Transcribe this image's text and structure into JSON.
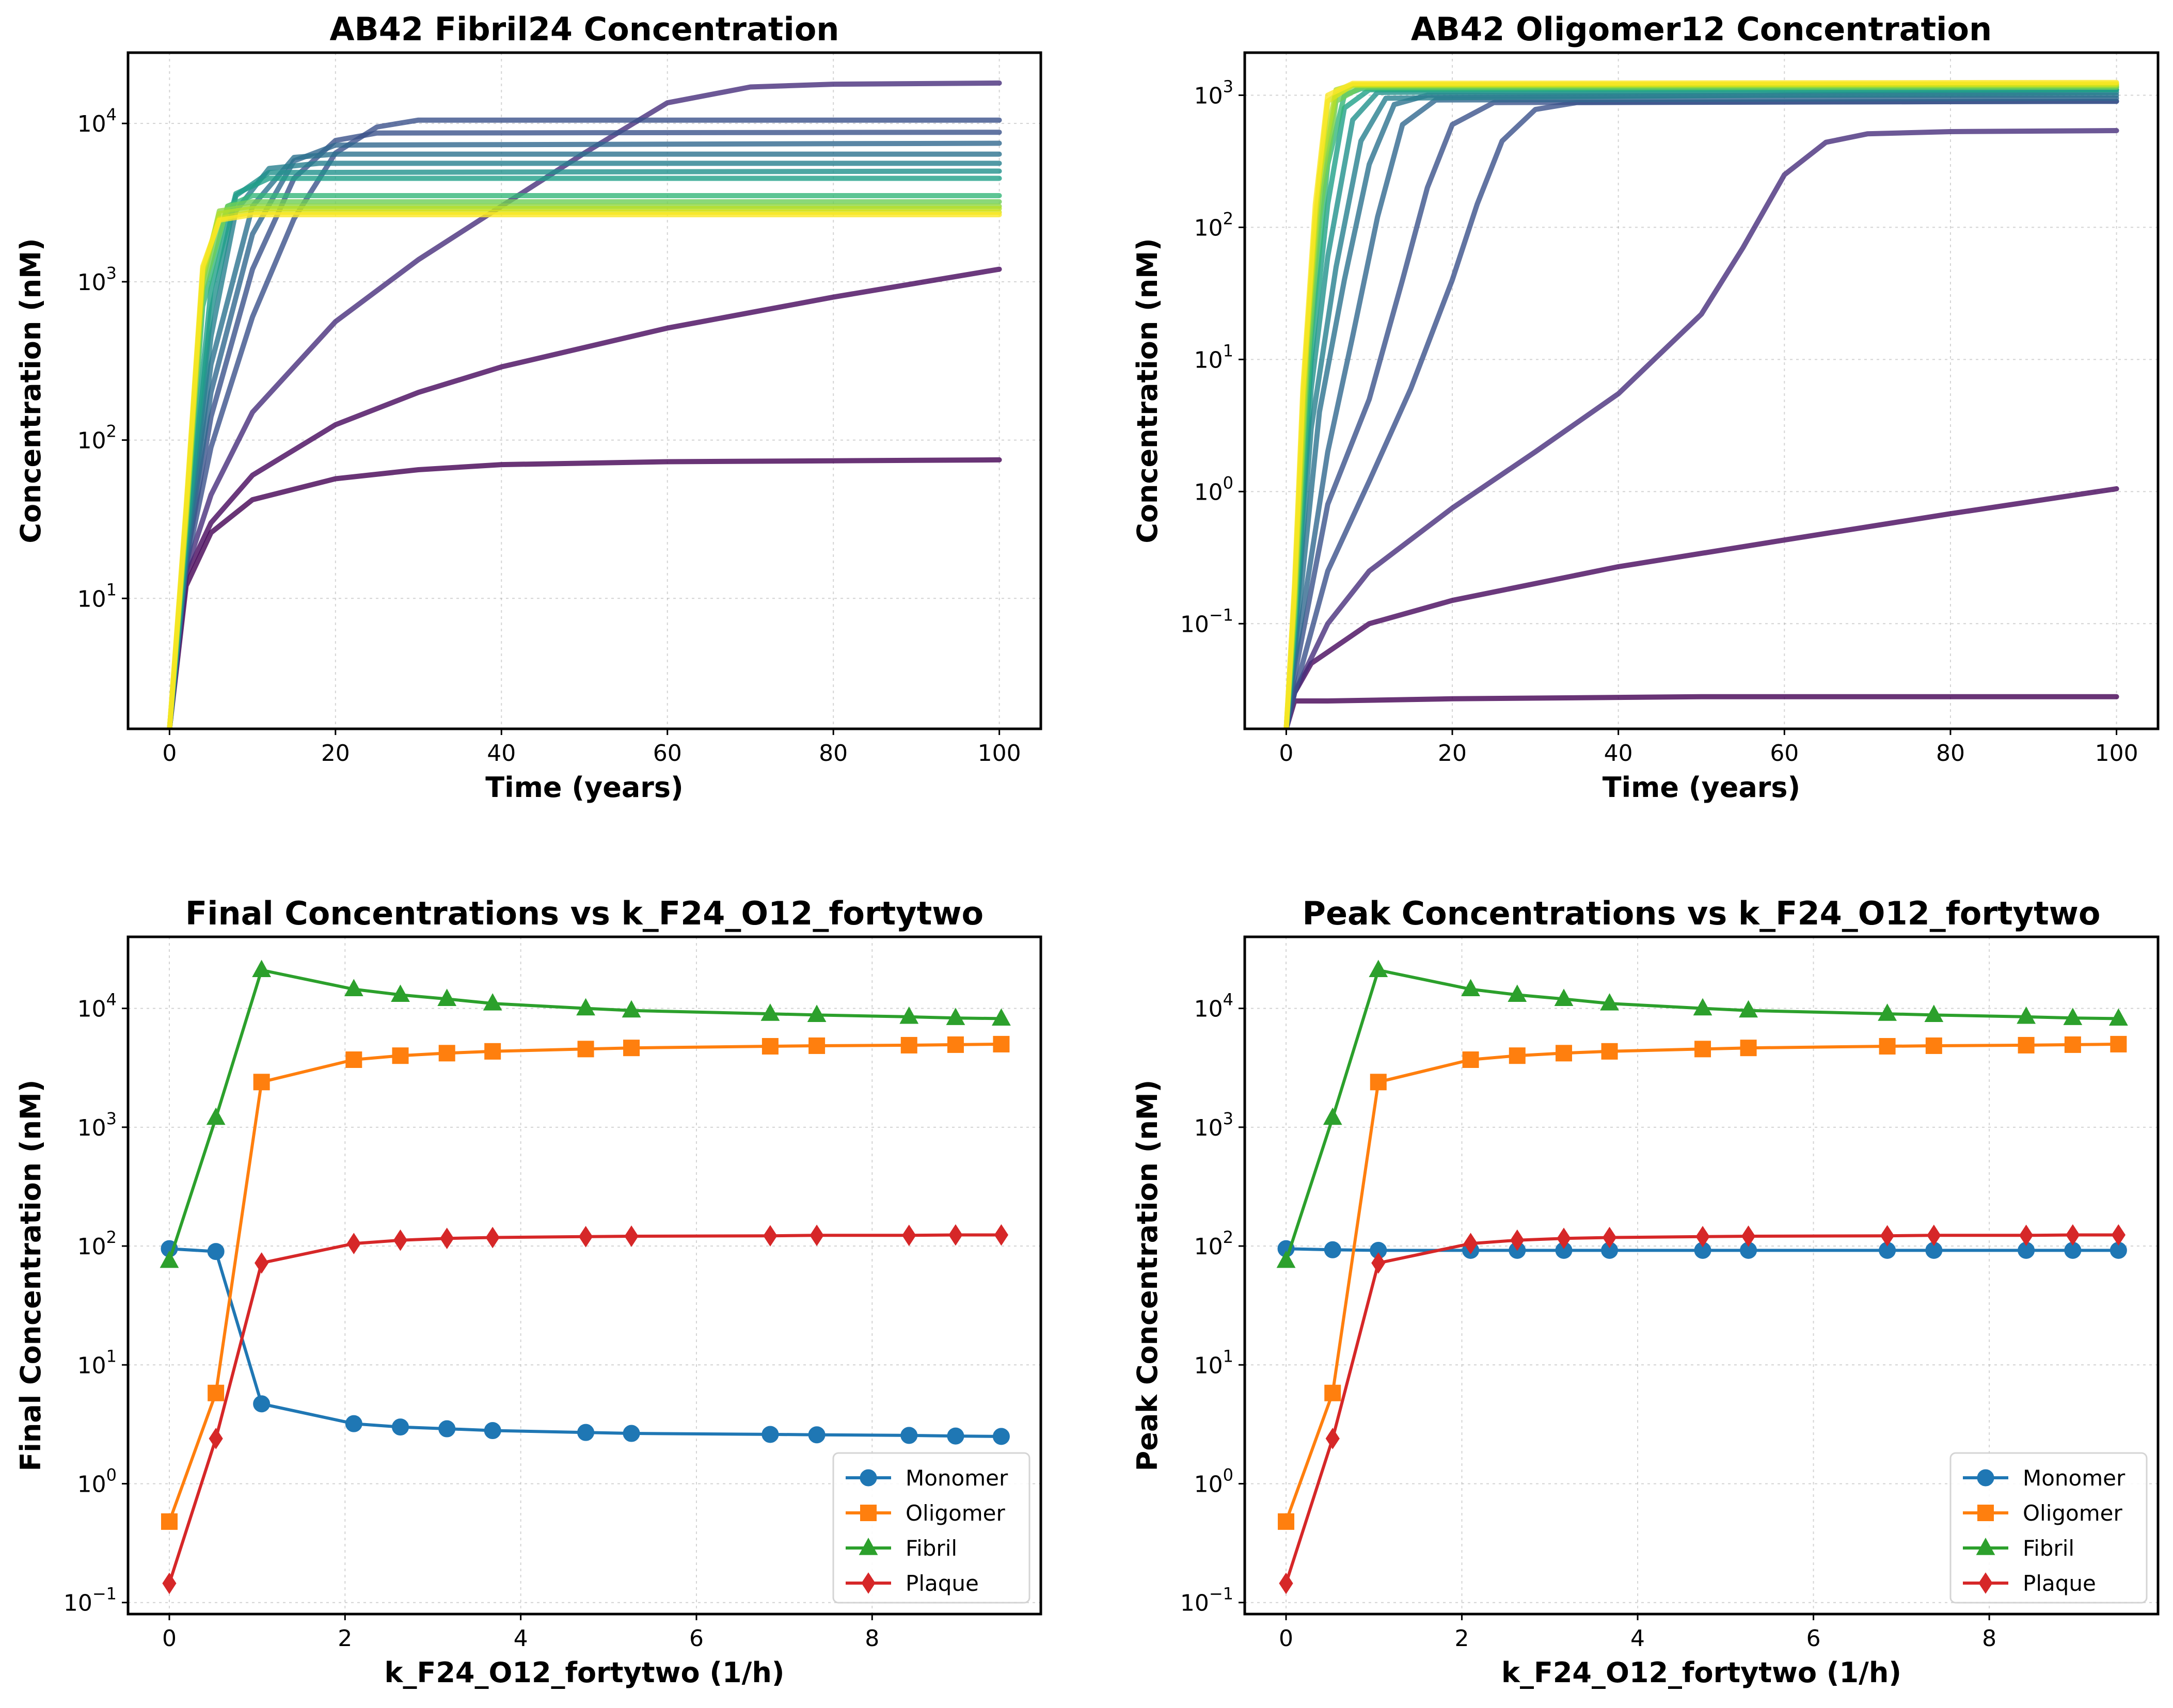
{
  "chart_data": [
    {
      "id": "fibril",
      "type": "line",
      "title": "AB42 Fibril24 Concentration",
      "xlabel": "Time (years)",
      "ylabel": "Concentration (nM)",
      "xlim": [
        -5,
        105
      ],
      "ylim": [
        1.5,
        28000
      ],
      "yscale": "log",
      "xticks": [
        0,
        20,
        40,
        60,
        80,
        100
      ],
      "yticks": [
        10,
        100,
        1000,
        10000
      ],
      "ytick_labels": [
        "10^1",
        "10^2",
        "10^3",
        "10^4"
      ],
      "grid": true,
      "legend": null,
      "colormap": "viridis",
      "series": [
        {
          "color": "#440154",
          "x": [
            0,
            2,
            5,
            10,
            20,
            30,
            40,
            60,
            80,
            100
          ],
          "y": [
            1.5,
            12,
            26,
            42,
            57,
            65,
            70,
            73,
            74,
            75
          ]
        },
        {
          "color": "#46085c",
          "x": [
            0,
            2,
            5,
            10,
            20,
            30,
            40,
            60,
            80,
            100
          ],
          "y": [
            1.5,
            14,
            30,
            60,
            125,
            200,
            290,
            510,
            800,
            1200
          ]
        },
        {
          "color": "#472e7c",
          "x": [
            0,
            2,
            5,
            10,
            20,
            30,
            40,
            50,
            60,
            70,
            80,
            100
          ],
          "y": [
            1.5,
            15,
            45,
            150,
            560,
            1380,
            3000,
            6500,
            13500,
            17000,
            17700,
            18000
          ]
        },
        {
          "color": "#3b518b",
          "x": [
            0,
            2,
            5,
            10,
            15,
            20,
            25,
            30,
            100
          ],
          "y": [
            1.5,
            16,
            90,
            600,
            2500,
            6500,
            9500,
            10500,
            10500
          ]
        },
        {
          "color": "#3b528b",
          "x": [
            0,
            2,
            5,
            10,
            15,
            20,
            25,
            100
          ],
          "y": [
            1.5,
            17,
            140,
            1200,
            4500,
            7800,
            8700,
            8800
          ]
        },
        {
          "color": "#31688e",
          "x": [
            0,
            2,
            5,
            10,
            15,
            20,
            100
          ],
          "y": [
            1.5,
            18,
            200,
            2000,
            5800,
            7300,
            7500
          ]
        },
        {
          "color": "#2c728e",
          "x": [
            0,
            2,
            5,
            10,
            15,
            20,
            100
          ],
          "y": [
            1.5,
            19,
            300,
            3000,
            6100,
            6400,
            6400
          ]
        },
        {
          "color": "#277f8e",
          "x": [
            0,
            2,
            5,
            8,
            12,
            18,
            100
          ],
          "y": [
            1.5,
            20,
            450,
            2800,
            5200,
            5600,
            5600
          ]
        },
        {
          "color": "#21918c",
          "x": [
            0,
            2,
            5,
            8,
            12,
            100
          ],
          "y": [
            1.5,
            22,
            650,
            3500,
            4900,
            5000
          ]
        },
        {
          "color": "#1fa088",
          "x": [
            0,
            2,
            5,
            8,
            12,
            100
          ],
          "y": [
            1.5,
            24,
            900,
            3600,
            4500,
            4500
          ]
        },
        {
          "color": "#35b779",
          "x": [
            0,
            2,
            4,
            7,
            10,
            100
          ],
          "y": [
            1.5,
            28,
            700,
            3000,
            3500,
            3500
          ]
        },
        {
          "color": "#6ece58",
          "x": [
            0,
            2,
            4,
            7,
            10,
            100
          ],
          "y": [
            1.5,
            30,
            900,
            3000,
            3200,
            3200
          ]
        },
        {
          "color": "#90d743",
          "x": [
            0,
            2,
            4,
            6,
            10,
            100
          ],
          "y": [
            1.5,
            32,
            1000,
            2800,
            3000,
            3000
          ]
        },
        {
          "color": "#b5de2b",
          "x": [
            0,
            2,
            4,
            6,
            10,
            100
          ],
          "y": [
            1.5,
            34,
            1100,
            2700,
            2900,
            2900
          ]
        },
        {
          "color": "#d8e219",
          "x": [
            0,
            2,
            4,
            6,
            10,
            100
          ],
          "y": [
            1.5,
            36,
            1200,
            2500,
            2750,
            2750
          ]
        },
        {
          "color": "#fde725",
          "x": [
            0,
            2,
            4,
            6,
            10,
            100
          ],
          "y": [
            1.5,
            38,
            1250,
            2450,
            2650,
            2650
          ]
        }
      ]
    },
    {
      "id": "oligomer",
      "type": "line",
      "title": "AB42 Oligomer12 Concentration",
      "xlabel": "Time (years)",
      "ylabel": "Concentration (nM)",
      "xlim": [
        -5,
        105
      ],
      "ylim": [
        0.016,
        2100
      ],
      "yscale": "log",
      "xticks": [
        0,
        20,
        40,
        60,
        80,
        100
      ],
      "yticks": [
        0.1,
        1,
        10,
        100,
        1000
      ],
      "ytick_labels": [
        "10^-1",
        "10^0",
        "10^1",
        "10^2",
        "10^3"
      ],
      "grid": true,
      "legend": null,
      "colormap": "viridis",
      "series": [
        {
          "color": "#440154",
          "x": [
            0,
            1,
            5,
            20,
            50,
            100
          ],
          "y": [
            0.016,
            0.026,
            0.026,
            0.027,
            0.028,
            0.028
          ]
        },
        {
          "color": "#46085c",
          "x": [
            0,
            1,
            3,
            10,
            20,
            40,
            60,
            80,
            100
          ],
          "y": [
            0.016,
            0.03,
            0.05,
            0.1,
            0.15,
            0.27,
            0.43,
            0.68,
            1.05
          ]
        },
        {
          "color": "#472e7c",
          "x": [
            0,
            1,
            5,
            10,
            20,
            30,
            40,
            50,
            55,
            60,
            65,
            70,
            80,
            100
          ],
          "y": [
            0.016,
            0.03,
            0.1,
            0.25,
            0.75,
            2,
            5.5,
            22,
            70,
            250,
            440,
            510,
            530,
            540
          ]
        },
        {
          "color": "#3b518b",
          "x": [
            0,
            1,
            5,
            10,
            15,
            20,
            23,
            26,
            30,
            35,
            100
          ],
          "y": [
            0.016,
            0.03,
            0.25,
            1.2,
            6,
            40,
            150,
            450,
            780,
            880,
            900
          ]
        },
        {
          "color": "#3b528b",
          "x": [
            0,
            1,
            5,
            10,
            14,
            17,
            20,
            25,
            100
          ],
          "y": [
            0.016,
            0.04,
            0.8,
            5,
            40,
            200,
            600,
            880,
            900
          ]
        },
        {
          "color": "#31688e",
          "x": [
            0,
            1,
            5,
            8,
            11,
            14,
            18,
            100
          ],
          "y": [
            0.016,
            0.05,
            2,
            15,
            120,
            600,
            920,
            950
          ]
        },
        {
          "color": "#2c728e",
          "x": [
            0,
            1,
            4,
            7,
            10,
            13,
            17,
            100
          ],
          "y": [
            0.016,
            0.06,
            4,
            40,
            300,
            850,
            1000,
            1000
          ]
        },
        {
          "color": "#277f8e",
          "x": [
            0,
            1,
            3,
            6,
            9,
            12,
            100
          ],
          "y": [
            0.016,
            0.07,
            3,
            50,
            450,
            950,
            1050
          ]
        },
        {
          "color": "#21918c",
          "x": [
            0,
            1,
            3,
            5,
            8,
            11,
            100
          ],
          "y": [
            0.016,
            0.08,
            6,
            60,
            650,
            1050,
            1100
          ]
        },
        {
          "color": "#1fa088",
          "x": [
            0,
            1,
            3,
            5,
            7,
            10,
            100
          ],
          "y": [
            0.016,
            0.09,
            10,
            150,
            800,
            1100,
            1100
          ]
        },
        {
          "color": "#35b779",
          "x": [
            0,
            1,
            3,
            5,
            7,
            9,
            100
          ],
          "y": [
            0.016,
            0.1,
            15,
            300,
            1000,
            1120,
            1150
          ]
        },
        {
          "color": "#6ece58",
          "x": [
            0,
            1,
            2.5,
            4,
            6,
            9,
            100
          ],
          "y": [
            0.016,
            0.12,
            8,
            120,
            900,
            1150,
            1150
          ]
        },
        {
          "color": "#90d743",
          "x": [
            0,
            1,
            2.5,
            4,
            6,
            8,
            100
          ],
          "y": [
            0.016,
            0.14,
            12,
            180,
            1000,
            1180,
            1180
          ]
        },
        {
          "color": "#b5de2b",
          "x": [
            0,
            1,
            2.5,
            4,
            6,
            8,
            100
          ],
          "y": [
            0.016,
            0.16,
            15,
            250,
            1100,
            1200,
            1200
          ]
        },
        {
          "color": "#d8e219",
          "x": [
            0,
            1,
            2,
            3.5,
            5,
            8,
            100
          ],
          "y": [
            0.016,
            0.18,
            5,
            120,
            900,
            1200,
            1220
          ]
        },
        {
          "color": "#fde725",
          "x": [
            0,
            1,
            2,
            3.5,
            5,
            8,
            100
          ],
          "y": [
            0.016,
            0.2,
            6,
            150,
            1000,
            1230,
            1250
          ]
        }
      ]
    },
    {
      "id": "final",
      "type": "line",
      "title": "Final Concentrations vs k_F24_O12_fortytwo",
      "xlabel": "k_F24_O12_fortytwo (1/h)",
      "ylabel": "Final Concentration (nM)",
      "xlim": [
        -0.47,
        9.92
      ],
      "ylim": [
        0.08,
        40000
      ],
      "yscale": "log",
      "xticks": [
        0,
        2,
        4,
        6,
        8
      ],
      "yticks": [
        0.1,
        1,
        10,
        100,
        1000,
        10000
      ],
      "ytick_labels": [
        "10^-1",
        "10^0",
        "10^1",
        "10^2",
        "10^3",
        "10^4"
      ],
      "grid": true,
      "legend": "lower right",
      "x": [
        0,
        0.53,
        1.05,
        2.1,
        2.63,
        3.16,
        3.68,
        4.74,
        5.26,
        6.84,
        7.37,
        8.42,
        8.95,
        9.47
      ],
      "series": [
        {
          "name": "Monomer",
          "color": "#1f77b4",
          "marker": "circle",
          "values": [
            95,
            90,
            4.7,
            3.2,
            3.0,
            2.9,
            2.8,
            2.7,
            2.65,
            2.6,
            2.58,
            2.55,
            2.52,
            2.5
          ]
        },
        {
          "name": "Oligomer",
          "color": "#ff7f0e",
          "marker": "square",
          "values": [
            0.48,
            5.8,
            2400,
            3700,
            4000,
            4200,
            4350,
            4550,
            4650,
            4800,
            4850,
            4900,
            4950,
            5000
          ]
        },
        {
          "name": "Fibril",
          "color": "#2ca02c",
          "marker": "triangle",
          "values": [
            75,
            1200,
            21000,
            14500,
            13000,
            12000,
            11000,
            10000,
            9600,
            9000,
            8800,
            8500,
            8300,
            8200
          ]
        },
        {
          "name": "Plaque",
          "color": "#d62728",
          "marker": "diamond",
          "values": [
            0.145,
            2.4,
            72,
            105,
            112,
            116,
            118,
            120,
            121,
            122,
            123,
            123,
            124,
            124
          ]
        }
      ]
    },
    {
      "id": "peak",
      "type": "line",
      "title": "Peak Concentrations vs k_F24_O12_fortytwo",
      "xlabel": "k_F24_O12_fortytwo (1/h)",
      "ylabel": "Peak Concentration (nM)",
      "xlim": [
        -0.47,
        9.92
      ],
      "ylim": [
        0.08,
        40000
      ],
      "yscale": "log",
      "xticks": [
        0,
        2,
        4,
        6,
        8
      ],
      "yticks": [
        0.1,
        1,
        10,
        100,
        1000,
        10000
      ],
      "ytick_labels": [
        "10^-1",
        "10^0",
        "10^1",
        "10^2",
        "10^3",
        "10^4"
      ],
      "grid": true,
      "legend": "lower right",
      "x": [
        0,
        0.53,
        1.05,
        2.1,
        2.63,
        3.16,
        3.68,
        4.74,
        5.26,
        6.84,
        7.37,
        8.42,
        8.95,
        9.47
      ],
      "series": [
        {
          "name": "Monomer",
          "color": "#1f77b4",
          "marker": "circle",
          "values": [
            95,
            93,
            92,
            92,
            92,
            92,
            92,
            92,
            92,
            92,
            92,
            92,
            92,
            92
          ]
        },
        {
          "name": "Oligomer",
          "color": "#ff7f0e",
          "marker": "square",
          "values": [
            0.48,
            5.8,
            2400,
            3700,
            4000,
            4200,
            4350,
            4550,
            4650,
            4800,
            4850,
            4900,
            4950,
            5000
          ]
        },
        {
          "name": "Fibril",
          "color": "#2ca02c",
          "marker": "triangle",
          "values": [
            75,
            1200,
            21000,
            14500,
            13000,
            12000,
            11000,
            10000,
            9600,
            9000,
            8800,
            8500,
            8300,
            8200
          ]
        },
        {
          "name": "Plaque",
          "color": "#d62728",
          "marker": "diamond",
          "values": [
            0.145,
            2.4,
            72,
            105,
            112,
            116,
            118,
            120,
            121,
            122,
            123,
            123,
            124,
            124
          ]
        }
      ]
    }
  ]
}
